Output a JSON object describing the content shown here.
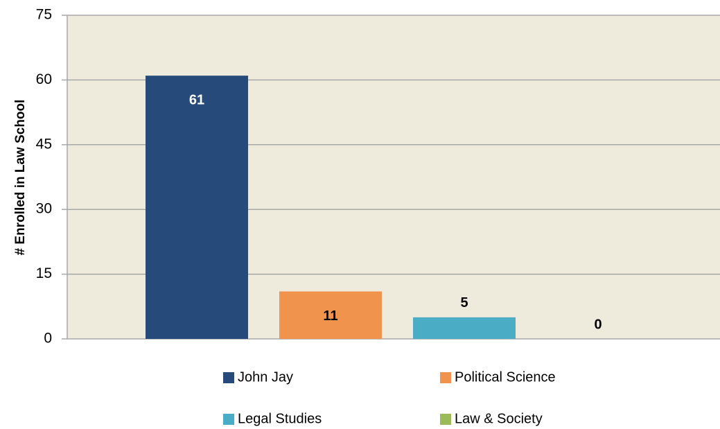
{
  "chart_data": {
    "type": "bar",
    "ylabel": "# Enrolled in Law School",
    "series": [
      {
        "name": "John Jay",
        "color": "#264a7a",
        "values": [
          61
        ]
      },
      {
        "name": "Political Science",
        "color": "#f0944d",
        "values": [
          11
        ]
      },
      {
        "name": "Legal Studies",
        "color": "#4bacc6",
        "values": [
          5
        ]
      },
      {
        "name": "Law & Society",
        "color": "#9bbb59",
        "values": [
          0
        ]
      }
    ],
    "ylim": [
      0,
      75
    ],
    "yticks": [
      0,
      15,
      30,
      45,
      60,
      75
    ],
    "grid": true,
    "legend": "bottom"
  }
}
